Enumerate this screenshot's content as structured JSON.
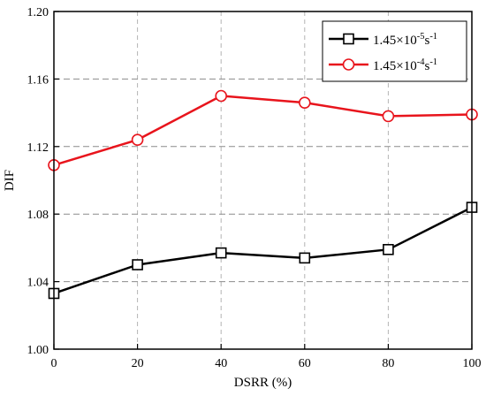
{
  "chart_data": {
    "type": "line",
    "xlabel": "DSRR (%)",
    "ylabel": "DIF",
    "xlim": [
      0,
      100
    ],
    "ylim": [
      1.0,
      1.2
    ],
    "x_ticks": [
      0,
      20,
      40,
      60,
      80,
      100
    ],
    "x_tick_labels": [
      "0",
      "20",
      "40",
      "60",
      "80",
      "100"
    ],
    "y_ticks": [
      1.0,
      1.04,
      1.08,
      1.12,
      1.16,
      1.2
    ],
    "y_tick_labels": [
      "1.00",
      "1.04",
      "1.08",
      "1.12",
      "1.16",
      "1.20"
    ],
    "grid": true,
    "legend_position": "top-right",
    "series": [
      {
        "name": "1.45×10⁻⁵s⁻¹",
        "label_base": "1.45×10",
        "label_exp": "-5",
        "label_unit": "s",
        "label_unit_exp": "-1",
        "color": "#000000",
        "marker": "square",
        "x": [
          0,
          20,
          40,
          60,
          80,
          100
        ],
        "y": [
          1.033,
          1.05,
          1.057,
          1.054,
          1.059,
          1.084
        ]
      },
      {
        "name": "1.45×10⁻⁴s⁻¹",
        "label_base": "1.45×10",
        "label_exp": "-4",
        "label_unit": "s",
        "label_unit_exp": "-1",
        "color": "#e8141c",
        "marker": "circle",
        "x": [
          0,
          20,
          40,
          60,
          80,
          100
        ],
        "y": [
          1.109,
          1.124,
          1.15,
          1.146,
          1.138,
          1.139
        ]
      }
    ]
  }
}
